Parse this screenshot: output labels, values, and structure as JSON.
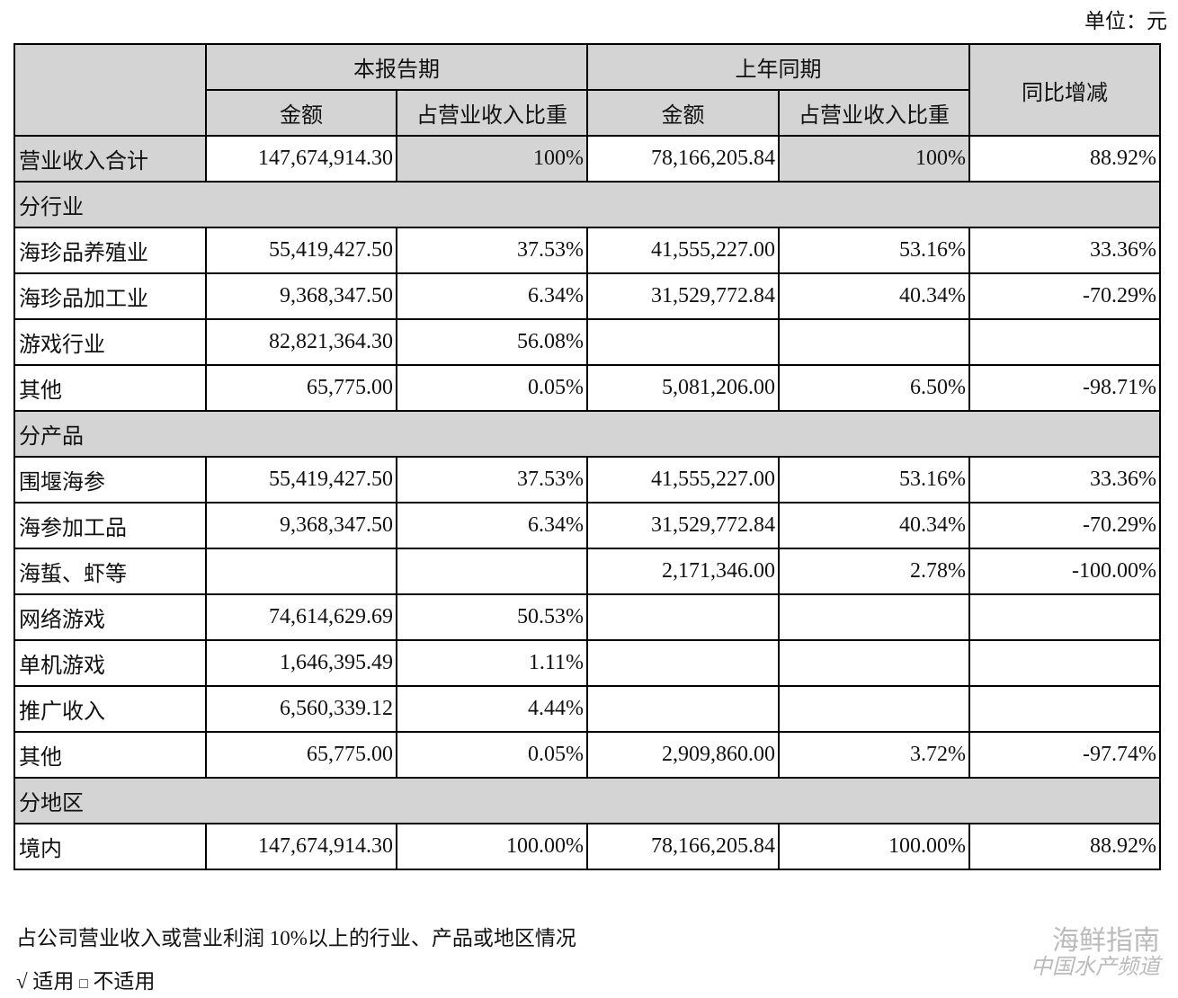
{
  "unit_label": "单位：元",
  "header": {
    "current_period": "本报告期",
    "prior_period": "上年同期",
    "yoy_change": "同比增减",
    "amount": "金额",
    "share": "占营业收入比重"
  },
  "total": {
    "label": "营业收入合计",
    "cur_amount": "147,674,914.30",
    "cur_share": "100%",
    "prev_amount": "78,166,205.84",
    "prev_share": "100%",
    "yoy": "88.92%"
  },
  "sections": [
    {
      "title": "分行业",
      "rows": [
        {
          "label": "海珍品养殖业",
          "cur_amount": "55,419,427.50",
          "cur_share": "37.53%",
          "prev_amount": "41,555,227.00",
          "prev_share": "53.16%",
          "yoy": "33.36%"
        },
        {
          "label": "海珍品加工业",
          "cur_amount": "9,368,347.50",
          "cur_share": "6.34%",
          "prev_amount": "31,529,772.84",
          "prev_share": "40.34%",
          "yoy": "-70.29%"
        },
        {
          "label": "游戏行业",
          "cur_amount": "82,821,364.30",
          "cur_share": "56.08%",
          "prev_amount": "",
          "prev_share": "",
          "yoy": ""
        },
        {
          "label": "其他",
          "cur_amount": "65,775.00",
          "cur_share": "0.05%",
          "prev_amount": "5,081,206.00",
          "prev_share": "6.50%",
          "yoy": "-98.71%"
        }
      ]
    },
    {
      "title": "分产品",
      "rows": [
        {
          "label": "围堰海参",
          "cur_amount": "55,419,427.50",
          "cur_share": "37.53%",
          "prev_amount": "41,555,227.00",
          "prev_share": "53.16%",
          "yoy": "33.36%"
        },
        {
          "label": "海参加工品",
          "cur_amount": "9,368,347.50",
          "cur_share": "6.34%",
          "prev_amount": "31,529,772.84",
          "prev_share": "40.34%",
          "yoy": "-70.29%"
        },
        {
          "label": "海蜇、虾等",
          "cur_amount": "",
          "cur_share": "",
          "prev_amount": "2,171,346.00",
          "prev_share": "2.78%",
          "yoy": "-100.00%"
        },
        {
          "label": "网络游戏",
          "cur_amount": "74,614,629.69",
          "cur_share": "50.53%",
          "prev_amount": "",
          "prev_share": "",
          "yoy": ""
        },
        {
          "label": "单机游戏",
          "cur_amount": "1,646,395.49",
          "cur_share": "1.11%",
          "prev_amount": "",
          "prev_share": "",
          "yoy": ""
        },
        {
          "label": "推广收入",
          "cur_amount": "6,560,339.12",
          "cur_share": "4.44%",
          "prev_amount": "",
          "prev_share": "",
          "yoy": ""
        },
        {
          "label": "其他",
          "cur_amount": "65,775.00",
          "cur_share": "0.05%",
          "prev_amount": "2,909,860.00",
          "prev_share": "3.72%",
          "yoy": "-97.74%"
        }
      ]
    },
    {
      "title": "分地区",
      "rows": [
        {
          "label": "境内",
          "cur_amount": "147,674,914.30",
          "cur_share": "100.00%",
          "prev_amount": "78,166,205.84",
          "prev_share": "100.00%",
          "yoy": "88.92%"
        }
      ]
    }
  ],
  "footnote": "占公司营业收入或营业利润 10%以上的行业、产品或地区情况",
  "applicable": {
    "check": "√",
    "applicable_label": "适用",
    "box": "□",
    "not_applicable_label": "不适用"
  },
  "watermark": {
    "line1": "海鲜指南",
    "line2": "中国水产频道"
  }
}
